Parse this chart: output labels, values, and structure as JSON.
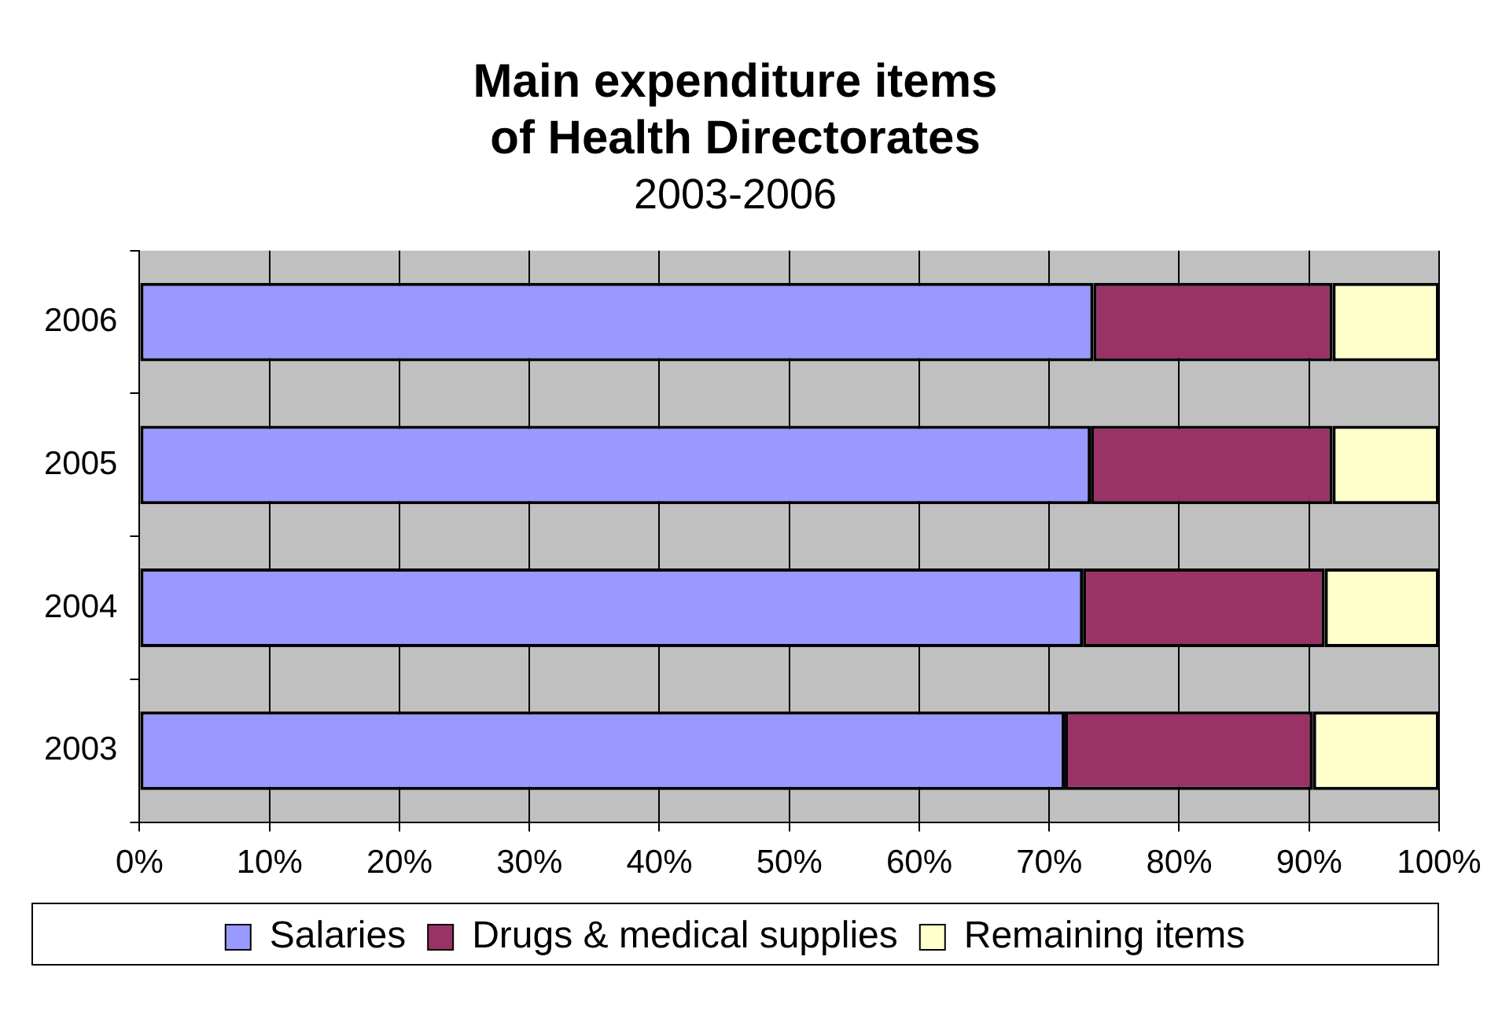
{
  "chart_data": {
    "type": "bar",
    "orientation": "horizontal",
    "stacked": true,
    "title": "Main expenditure items\nof Health Directorates",
    "subtitle": "2003-2006",
    "categories": [
      "2006",
      "2005",
      "2004",
      "2003"
    ],
    "series": [
      {
        "name": "Salaries",
        "color": "#9999ff",
        "values": [
          73.4,
          73.2,
          72.6,
          71.2
        ]
      },
      {
        "name": "Drugs & medical supplies",
        "color": "#993366",
        "values": [
          18.4,
          18.6,
          18.6,
          19.1
        ]
      },
      {
        "name": "Remaining items",
        "color": "#ffffcc",
        "values": [
          8.2,
          8.2,
          8.8,
          9.7
        ]
      }
    ],
    "xlim": [
      0,
      100
    ],
    "xticks": [
      {
        "value": 0,
        "label": "0%"
      },
      {
        "value": 10,
        "label": "10%"
      },
      {
        "value": 20,
        "label": "20%"
      },
      {
        "value": 30,
        "label": "30%"
      },
      {
        "value": 40,
        "label": "40%"
      },
      {
        "value": 50,
        "label": "50%"
      },
      {
        "value": 60,
        "label": "60%"
      },
      {
        "value": 70,
        "label": "70%"
      },
      {
        "value": 80,
        "label": "80%"
      },
      {
        "value": 90,
        "label": "90%"
      },
      {
        "value": 100,
        "label": "100%"
      }
    ],
    "grid": "x",
    "legend": "bottom"
  }
}
